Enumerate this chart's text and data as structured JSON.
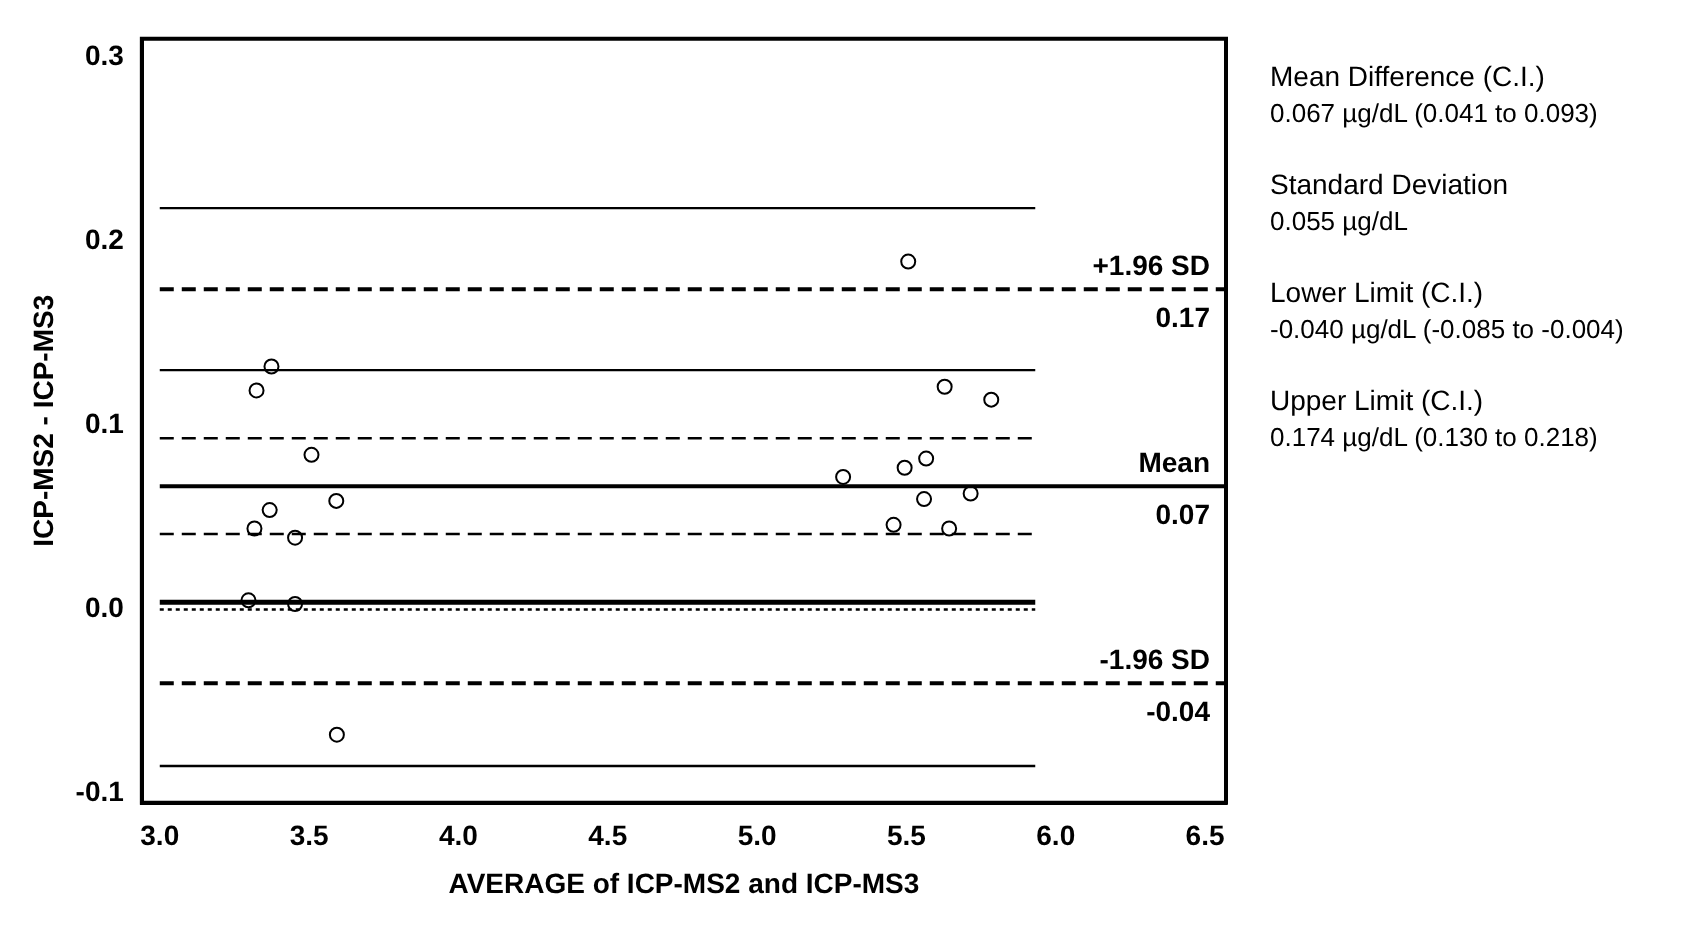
{
  "chart_data": {
    "type": "scatter",
    "xlabel": "AVERAGE of ICP-MS2 and ICP-MS3",
    "ylabel": "ICP-MS2 - ICP-MS3",
    "series": [
      {
        "color": "#000000",
        "x": [
          3.374,
          3.324,
          3.508,
          3.368,
          3.591,
          3.317,
          3.453,
          3.297,
          3.453,
          3.593,
          5.506,
          5.628,
          5.784,
          5.288,
          5.494,
          5.566,
          5.559,
          5.715,
          5.457,
          5.643
        ],
        "values": [
          0.132,
          0.119,
          0.084,
          0.054,
          0.059,
          0.044,
          0.039,
          0.005,
          0.003,
          -0.068,
          0.189,
          0.121,
          0.114,
          0.072,
          0.077,
          0.082,
          0.06,
          0.063,
          0.046,
          0.044
        ]
      }
    ],
    "marker": "circle",
    "xlim": [
      2.94,
      6.57
    ],
    "xticks": [
      {
        "value": 3,
        "label": "3.0"
      },
      3.5,
      {
        "value": 4,
        "label": "4.0"
      },
      4.5,
      {
        "value": 5,
        "label": "5.0"
      },
      5.5,
      {
        "value": 6,
        "label": "6.0"
      },
      6.5
    ],
    "ylim": [
      -0.105,
      0.31
    ],
    "yticks": [
      -0.1,
      {
        "value": 0,
        "label": "0.0"
      },
      0.1,
      0.2,
      0.3
    ],
    "grid": false,
    "legend": false,
    "ref_lines": [
      {
        "axis": "y",
        "value": 0.218,
        "line_style": "solid"
      },
      {
        "axis": "y",
        "value": 0.174,
        "label": "+1.96 SD",
        "line_style": "dashed"
      },
      {
        "axis": "y",
        "value": 0.13,
        "line_style": "solid"
      },
      {
        "axis": "y",
        "value": 0.093,
        "line_style": "dashed"
      },
      {
        "axis": "y",
        "value": 0.067,
        "label": "Mean",
        "line_style": "solid"
      },
      {
        "axis": "y",
        "value": 0.041,
        "line_style": "dashed"
      },
      {
        "axis": "y",
        "value": 0.004,
        "line_style": "solid"
      },
      {
        "axis": "y",
        "value": 0,
        "line_style": "dotted"
      },
      {
        "axis": "y",
        "value": -0.04,
        "label": "-1.96 SD",
        "line_style": "dashed"
      },
      {
        "axis": "y",
        "value": -0.085,
        "line_style": "solid"
      }
    ],
    "annotations": [
      {
        "text": "0.17",
        "y": 0.174
      },
      {
        "text": "0.07",
        "y": 0.067
      },
      {
        "text": "-0.04",
        "y": -0.04
      },
      "Mean Difference (C.I.)",
      "0.067 µg/dL (0.041 to 0.093)",
      "Standard Deviation",
      "0.055 µg/dL",
      "Lower Limit (C.I.)",
      "-0.040 µg/dL (-0.085 to -0.004)",
      "Upper Limit (C.I.)",
      "0.174 µg/dL (0.130 to 0.218)"
    ]
  }
}
